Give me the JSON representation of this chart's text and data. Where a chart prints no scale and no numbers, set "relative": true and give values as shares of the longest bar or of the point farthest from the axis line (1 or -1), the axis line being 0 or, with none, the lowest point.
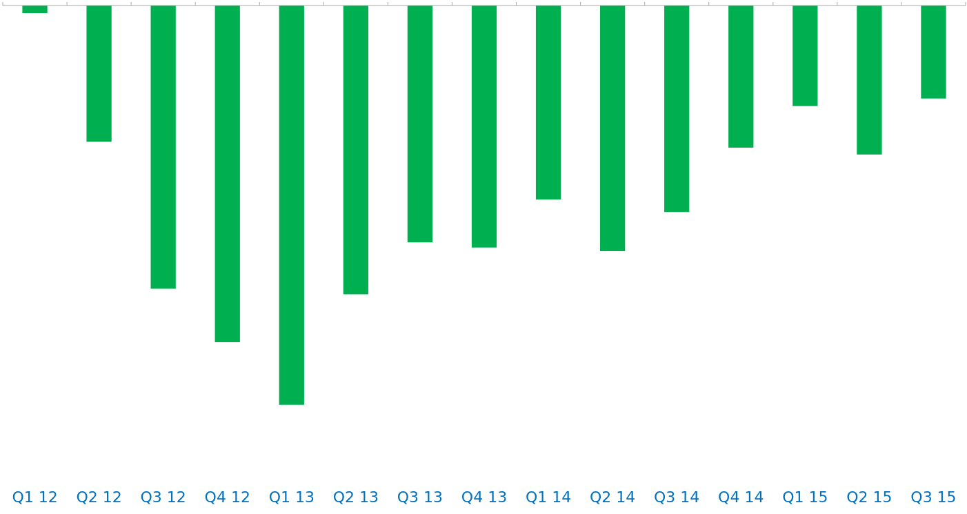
{
  "chart_data": {
    "type": "bar",
    "relative": true,
    "categories": [
      "Q1 12",
      "Q2 12",
      "Q3 12",
      "Q4 12",
      "Q1 13",
      "Q2 13",
      "Q3 13",
      "Q4 13",
      "Q1 14",
      "Q2 14",
      "Q3 14",
      "Q4 14",
      "Q1 15",
      "Q2 15",
      "Q3 15"
    ],
    "values": [
      -0.019,
      -0.341,
      -0.709,
      -0.843,
      -1,
      -0.723,
      -0.593,
      -0.606,
      -0.486,
      -0.615,
      -0.517,
      -0.356,
      -0.252,
      -0.373,
      -0.233
    ],
    "color": "#00b050",
    "grid": false,
    "legend": false
  }
}
